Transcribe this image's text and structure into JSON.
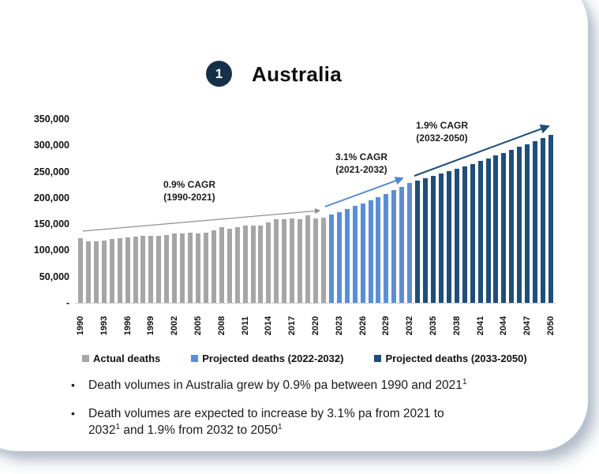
{
  "slide": {
    "badge": "1",
    "title": "Australia"
  },
  "chart_data": {
    "type": "bar",
    "title": "Australia",
    "xlabel": "",
    "ylabel": "",
    "ylim": [
      0,
      350000
    ],
    "grid": false,
    "legend_position": "bottom",
    "y_ticks": [
      0,
      50000,
      100000,
      150000,
      200000,
      250000,
      300000,
      350000
    ],
    "y_tick_labels": [
      "-",
      "50,000",
      "100,000",
      "150,000",
      "200,000",
      "250,000",
      "300,000",
      "350,000"
    ],
    "x_range": [
      1990,
      2050
    ],
    "x_tick_years": [
      1990,
      1993,
      1996,
      1999,
      2002,
      2005,
      2008,
      2011,
      2014,
      2017,
      2020,
      2023,
      2026,
      2029,
      2032,
      2035,
      2038,
      2041,
      2044,
      2047,
      2050
    ],
    "series": [
      {
        "name": "Actual deaths",
        "color": "#a6a6a6",
        "start_year": 1990,
        "values": [
          123000,
          116500,
          117500,
          119000,
          122000,
          123500,
          125000,
          126500,
          127000,
          128000,
          128000,
          128500,
          132500,
          132000,
          133000,
          131500,
          134000,
          137500,
          143500,
          141000,
          143500,
          146500,
          147500,
          147500,
          153500,
          159000,
          158500,
          160500,
          158500,
          166000,
          160500,
          162000
        ]
      },
      {
        "name": "Projected deaths (2022-2032)",
        "color": "#5b8ed5",
        "start_year": 2022,
        "values": [
          168000,
          173200,
          178600,
          184100,
          189800,
          195700,
          201800,
          208000,
          214500,
          221100,
          228000
        ]
      },
      {
        "name": "Projected deaths (2033-2050)",
        "color": "#1f4e79",
        "start_year": 2033,
        "values": [
          232300,
          236700,
          241200,
          245800,
          250500,
          255300,
          260100,
          265000,
          270100,
          275200,
          280400,
          285800,
          291200,
          296700,
          302400,
          308100,
          314000,
          320000
        ]
      }
    ],
    "annotations": [
      {
        "line1": "0.9% CAGR",
        "line2": "(1990-2021)"
      },
      {
        "line1": "3.1% CAGR",
        "line2": "(2021-2032)"
      },
      {
        "line1": "1.9% CAGR",
        "line2": "(2032-2050)"
      }
    ]
  },
  "legend": {
    "items": [
      {
        "label": "Actual deaths",
        "color": "#a6a6a6"
      },
      {
        "label": "Projected deaths (2022-2032)",
        "color": "#5b8ed5"
      },
      {
        "label": "Projected deaths (2033-2050)",
        "color": "#1f4e79"
      }
    ]
  },
  "bullets": {
    "b1": {
      "text": "Death volumes in Australia grew by 0.9% pa between 1990 and 2021",
      "sup": "1"
    },
    "b2": {
      "l1": "Death volumes are expected to increase by 3.1% pa from 2021 to",
      "l2a": "2032",
      "s1": "1",
      "l2b": " and 1.9% from 2032 to 2050",
      "s2": "1"
    }
  },
  "colors": {
    "actual_bar": "#a6a6a6",
    "projected_2022_2032_bar": "#5b8ed5",
    "projected_2033_2050_bar": "#1f4e79",
    "badge_circle": "#16304a",
    "arrow_actual": "#8f8f8f",
    "arrow_projected_1": "#4f86ce",
    "arrow_projected_2": "#1f4e79"
  }
}
